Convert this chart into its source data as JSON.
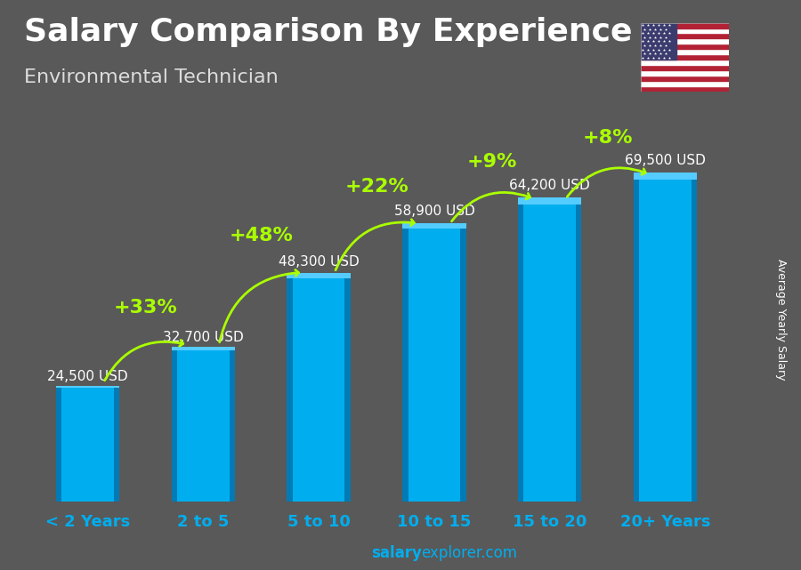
{
  "title": "Salary Comparison By Experience",
  "subtitle": "Environmental Technician",
  "ylabel": "Average Yearly Salary",
  "watermark_left": "salary",
  "watermark_right": "explorer.com",
  "categories": [
    "< 2 Years",
    "2 to 5",
    "5 to 10",
    "10 to 15",
    "15 to 20",
    "20+ Years"
  ],
  "values": [
    24500,
    32700,
    48300,
    58900,
    64200,
    69500
  ],
  "labels": [
    "24,500 USD",
    "32,700 USD",
    "48,300 USD",
    "58,900 USD",
    "64,200 USD",
    "69,500 USD"
  ],
  "pct_changes": [
    null,
    "+33%",
    "+48%",
    "+22%",
    "+9%",
    "+8%"
  ],
  "bar_color_main": "#00AEEF",
  "bar_color_light": "#55CCFF",
  "bar_color_dark": "#007BB5",
  "background_color": "#595959",
  "title_color": "#ffffff",
  "subtitle_color": "#dddddd",
  "label_color": "#ffffff",
  "pct_color": "#aaff00",
  "arrow_color": "#aaff00",
  "xlabel_color": "#00AEEF",
  "watermark_color": "#00AEEF",
  "title_fontsize": 26,
  "subtitle_fontsize": 16,
  "label_fontsize": 11,
  "pct_fontsize": 16,
  "xlabel_fontsize": 13,
  "ylabel_fontsize": 9,
  "ylim": [
    0,
    80000
  ]
}
